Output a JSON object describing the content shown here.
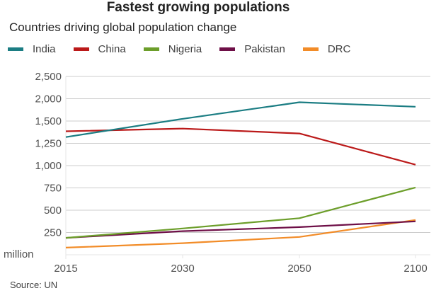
{
  "chart_data": {
    "type": "line",
    "title": "Fastest growing populations",
    "subtitle": "Countries driving global population change",
    "xlabel": "",
    "ylabel": "million",
    "x": [
      "2015",
      "2030",
      "2050",
      "2100"
    ],
    "yticks": [
      250,
      500,
      750,
      1000,
      1250,
      1500,
      2000,
      2500
    ],
    "ytick_labels": [
      "250",
      "500",
      "750",
      "1,000",
      "1,250",
      "1,500",
      "2,000",
      "2,500"
    ],
    "ylim": [
      0,
      2500
    ],
    "y_scale_note": "ticks evenly spaced (non-linear axis)",
    "grid": true,
    "legend_position": "top-left",
    "series": [
      {
        "name": "India",
        "color": "#1b7d83",
        "values": [
          1320,
          1550,
          1920,
          1820
        ]
      },
      {
        "name": "China",
        "color": "#bb1919",
        "values": [
          1385,
          1415,
          1360,
          1010
        ]
      },
      {
        "name": "Nigeria",
        "color": "#6c9e2a",
        "values": [
          190,
          295,
          410,
          755
        ]
      },
      {
        "name": "Pakistan",
        "color": "#6e0f47",
        "values": [
          190,
          265,
          310,
          375
        ]
      },
      {
        "name": "DRC",
        "color": "#f28c28",
        "values": [
          80,
          130,
          200,
          390
        ]
      }
    ],
    "source": "Source: UN"
  }
}
